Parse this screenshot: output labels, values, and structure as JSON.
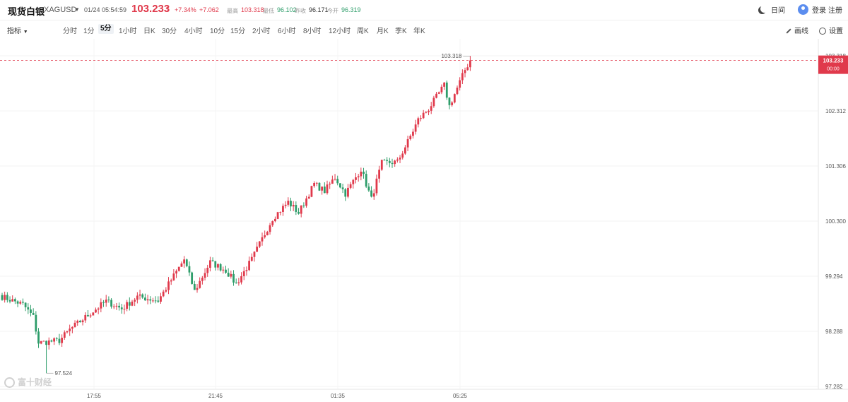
{
  "header": {
    "title": "现货白银",
    "symbol": "XAGUSD",
    "datetime": "01/24 05:54:59",
    "price": "103.233",
    "change_pct": "+7.34%",
    "change_abs": "+7.062",
    "stats": [
      {
        "label": "最高",
        "value": "103.318",
        "color": "#e0394b"
      },
      {
        "label": "最低",
        "value": "96.102",
        "color": "#2e9d6a"
      },
      {
        "label": "昨收",
        "value": "96.171",
        "color": "#333333"
      },
      {
        "label": "今开",
        "value": "96.319",
        "color": "#2e9d6a"
      }
    ],
    "theme_label": "日间",
    "login_label": "登录",
    "register_label": "注册"
  },
  "toolbar": {
    "indicator_label": "指标",
    "periods": [
      "分时",
      "1分",
      "5分",
      "1小时",
      "日K",
      "30分",
      "4小时",
      "10分",
      "15分",
      "2小时",
      "6小时",
      "8小时",
      "12小时",
      "周K",
      "月K",
      "季K",
      "年K"
    ],
    "active_period": "5分",
    "draw_label": "画线",
    "settings_label": "设置"
  },
  "watermark": "富十财经",
  "chart_data": {
    "type": "candlestick",
    "y_ticks": [
      "103.318",
      "102.312",
      "101.306",
      "100.300",
      "99.294",
      "98.288",
      "97.282"
    ],
    "x_ticks": [
      "17:55",
      "21:45",
      "01:35",
      "05:25"
    ],
    "ylim": [
      97.282,
      103.318
    ],
    "high_label": "103.318",
    "low_label": "97.524",
    "last_price": "103.233",
    "last_time_label": "00:00",
    "colors": {
      "up": "#e0394b",
      "down": "#2e9d6a"
    },
    "anchors": [
      {
        "i": 0,
        "c": 98.92
      },
      {
        "i": 8,
        "c": 98.78
      },
      {
        "i": 12,
        "c": 98.55
      },
      {
        "i": 14,
        "c": 98.08
      },
      {
        "i": 22,
        "c": 98.12
      },
      {
        "i": 26,
        "c": 98.32
      },
      {
        "i": 34,
        "c": 98.62
      },
      {
        "i": 40,
        "c": 98.84
      },
      {
        "i": 46,
        "c": 98.7
      },
      {
        "i": 52,
        "c": 98.92
      },
      {
        "i": 60,
        "c": 98.85
      },
      {
        "i": 66,
        "c": 99.3
      },
      {
        "i": 70,
        "c": 99.6
      },
      {
        "i": 74,
        "c": 99.02
      },
      {
        "i": 80,
        "c": 99.55
      },
      {
        "i": 86,
        "c": 99.4
      },
      {
        "i": 90,
        "c": 99.15
      },
      {
        "i": 96,
        "c": 99.6
      },
      {
        "i": 104,
        "c": 100.35
      },
      {
        "i": 110,
        "c": 100.65
      },
      {
        "i": 114,
        "c": 100.45
      },
      {
        "i": 120,
        "c": 100.98
      },
      {
        "i": 124,
        "c": 100.85
      },
      {
        "i": 128,
        "c": 101.1
      },
      {
        "i": 132,
        "c": 100.8
      },
      {
        "i": 138,
        "c": 101.25
      },
      {
        "i": 142,
        "c": 100.7
      },
      {
        "i": 146,
        "c": 101.36
      },
      {
        "i": 152,
        "c": 101.38
      },
      {
        "i": 156,
        "c": 101.75
      },
      {
        "i": 160,
        "c": 102.15
      },
      {
        "i": 164,
        "c": 102.35
      },
      {
        "i": 170,
        "c": 102.78
      },
      {
        "i": 172,
        "c": 102.4
      },
      {
        "i": 178,
        "c": 103.06
      },
      {
        "i": 180,
        "c": 103.233
      }
    ]
  }
}
